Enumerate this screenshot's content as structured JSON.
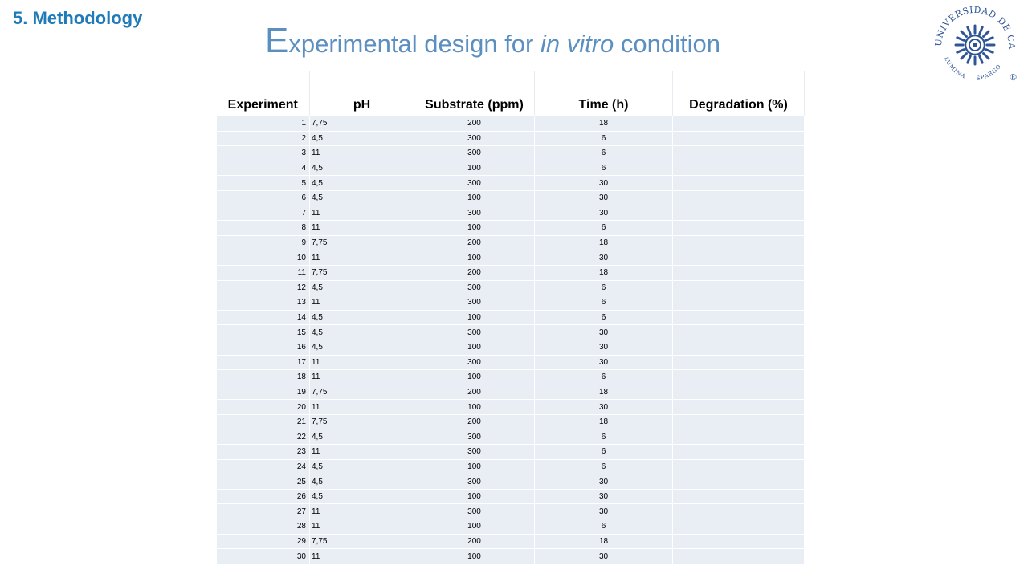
{
  "header": {
    "section": "5. Methodology",
    "title_cap": "E",
    "title_rest": "xperimental design for ",
    "title_italic": "in vitro",
    "title_end": " condition"
  },
  "logo": {
    "top_text": "UNIVERSIDAD DE CALDAS",
    "motto_left": "LUMINA",
    "motto_right": "SPARGO",
    "registered": "®",
    "color": "#2f5597"
  },
  "table": {
    "columns": [
      "Experiment",
      "pH",
      "Substrate (ppm)",
      "Time (h)",
      "Degradation (%)"
    ],
    "rows": [
      [
        "1",
        "7,75",
        "200",
        "18",
        ""
      ],
      [
        "2",
        "4,5",
        "300",
        "6",
        ""
      ],
      [
        "3",
        "11",
        "300",
        "6",
        ""
      ],
      [
        "4",
        "4,5",
        "100",
        "6",
        ""
      ],
      [
        "5",
        "4,5",
        "300",
        "30",
        ""
      ],
      [
        "6",
        "4,5",
        "100",
        "30",
        ""
      ],
      [
        "7",
        "11",
        "300",
        "30",
        ""
      ],
      [
        "8",
        "11",
        "100",
        "6",
        ""
      ],
      [
        "9",
        "7,75",
        "200",
        "18",
        ""
      ],
      [
        "10",
        "11",
        "100",
        "30",
        ""
      ],
      [
        "11",
        "7,75",
        "200",
        "18",
        ""
      ],
      [
        "12",
        "4,5",
        "300",
        "6",
        ""
      ],
      [
        "13",
        "11",
        "300",
        "6",
        ""
      ],
      [
        "14",
        "4,5",
        "100",
        "6",
        ""
      ],
      [
        "15",
        "4,5",
        "300",
        "30",
        ""
      ],
      [
        "16",
        "4,5",
        "100",
        "30",
        ""
      ],
      [
        "17",
        "11",
        "300",
        "30",
        ""
      ],
      [
        "18",
        "11",
        "100",
        "6",
        ""
      ],
      [
        "19",
        "7,75",
        "200",
        "18",
        ""
      ],
      [
        "20",
        "11",
        "100",
        "30",
        ""
      ],
      [
        "21",
        "7,75",
        "200",
        "18",
        ""
      ],
      [
        "22",
        "4,5",
        "300",
        "6",
        ""
      ],
      [
        "23",
        "11",
        "300",
        "6",
        ""
      ],
      [
        "24",
        "4,5",
        "100",
        "6",
        ""
      ],
      [
        "25",
        "4,5",
        "300",
        "30",
        ""
      ],
      [
        "26",
        "4,5",
        "100",
        "30",
        ""
      ],
      [
        "27",
        "11",
        "300",
        "30",
        ""
      ],
      [
        "28",
        "11",
        "100",
        "6",
        ""
      ],
      [
        "29",
        "7,75",
        "200",
        "18",
        ""
      ],
      [
        "30",
        "11",
        "100",
        "30",
        ""
      ]
    ]
  }
}
